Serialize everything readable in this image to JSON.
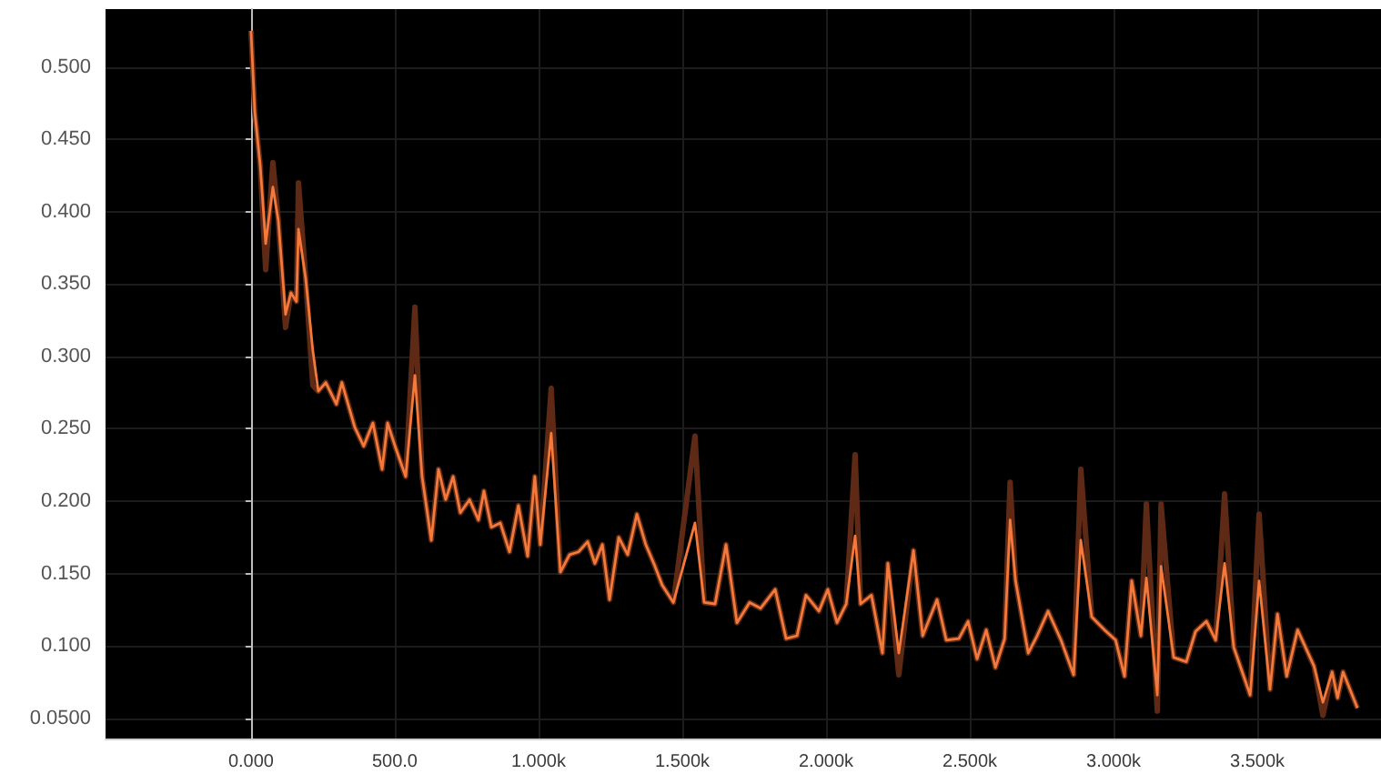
{
  "chart_data": {
    "type": "line",
    "marker": "none",
    "grid": true,
    "xlim": [
      -506,
      3930
    ],
    "ylim": [
      0.036,
      0.54
    ],
    "xticks": [
      {
        "value": 0,
        "label": "0.000"
      },
      {
        "value": 500,
        "label": "500.0"
      },
      {
        "value": 1000,
        "label": "1.000k"
      },
      {
        "value": 1500,
        "label": "1.500k"
      },
      {
        "value": 2000,
        "label": "2.000k"
      },
      {
        "value": 2500,
        "label": "2.500k"
      },
      {
        "value": 3000,
        "label": "3.000k"
      },
      {
        "value": 3500,
        "label": "3.500k"
      }
    ],
    "yticks": [
      {
        "value": 0.05,
        "label": "0.0500"
      },
      {
        "value": 0.1,
        "label": "0.100"
      },
      {
        "value": 0.15,
        "label": "0.150"
      },
      {
        "value": 0.2,
        "label": "0.200"
      },
      {
        "value": 0.25,
        "label": "0.250"
      },
      {
        "value": 0.3,
        "label": "0.300"
      },
      {
        "value": 0.35,
        "label": "0.350"
      },
      {
        "value": 0.4,
        "label": "0.400"
      },
      {
        "value": 0.45,
        "label": "0.450"
      },
      {
        "value": 0.5,
        "label": "0.500"
      }
    ],
    "series": [
      {
        "color": "#5e2a16",
        "x": [
          0,
          13,
          32,
          51,
          76,
          95,
          120,
          139,
          158,
          165,
          190,
          215,
          234,
          260,
          297,
          316,
          361,
          392,
          424,
          456,
          475,
          506,
          538,
          570,
          595,
          627,
          652,
          677,
          703,
          728,
          760,
          791,
          810,
          836,
          867,
          899,
          930,
          962,
          987,
          1006,
          1044,
          1076,
          1108,
          1139,
          1171,
          1196,
          1222,
          1247,
          1279,
          1310,
          1342,
          1373,
          1405,
          1430,
          1469,
          1544,
          1576,
          1614,
          1652,
          1690,
          1734,
          1772,
          1823,
          1861,
          1899,
          1930,
          1975,
          2006,
          2038,
          2070,
          2101,
          2120,
          2158,
          2196,
          2215,
          2253,
          2304,
          2336,
          2386,
          2418,
          2462,
          2494,
          2525,
          2557,
          2589,
          2621,
          2640,
          2659,
          2703,
          2734,
          2772,
          2817,
          2861,
          2886,
          2924,
          2969,
          3007,
          3038,
          3063,
          3095,
          3114,
          3152,
          3165,
          3209,
          3253,
          3285,
          3323,
          3355,
          3386,
          3418,
          3475,
          3506,
          3544,
          3570,
          3602,
          3640,
          3697,
          3728,
          3760,
          3779,
          3798,
          3848
        ],
        "values": [
          0.525,
          0.469,
          0.432,
          0.36,
          0.434,
          0.394,
          0.32,
          0.344,
          0.338,
          0.42,
          0.354,
          0.28,
          0.276,
          0.282,
          0.267,
          0.282,
          0.251,
          0.238,
          0.254,
          0.222,
          0.254,
          0.235,
          0.217,
          0.334,
          0.217,
          0.173,
          0.222,
          0.201,
          0.217,
          0.192,
          0.201,
          0.187,
          0.207,
          0.182,
          0.185,
          0.165,
          0.197,
          0.162,
          0.217,
          0.17,
          0.278,
          0.151,
          0.163,
          0.165,
          0.172,
          0.157,
          0.17,
          0.132,
          0.175,
          0.163,
          0.191,
          0.17,
          0.155,
          0.142,
          0.13,
          0.245,
          0.13,
          0.129,
          0.17,
          0.116,
          0.13,
          0.126,
          0.139,
          0.105,
          0.107,
          0.135,
          0.124,
          0.139,
          0.116,
          0.129,
          0.232,
          0.129,
          0.135,
          0.095,
          0.157,
          0.08,
          0.166,
          0.107,
          0.132,
          0.104,
          0.105,
          0.117,
          0.091,
          0.111,
          0.085,
          0.105,
          0.213,
          0.145,
          0.095,
          0.107,
          0.124,
          0.104,
          0.08,
          0.222,
          0.12,
          0.111,
          0.104,
          0.079,
          0.145,
          0.107,
          0.198,
          0.055,
          0.198,
          0.092,
          0.089,
          0.11,
          0.117,
          0.104,
          0.205,
          0.099,
          0.066,
          0.191,
          0.07,
          0.122,
          0.079,
          0.111,
          0.086,
          0.052,
          0.082,
          0.064,
          0.082,
          0.057
        ]
      },
      {
        "color": "#f4793b",
        "x": [
          0,
          13,
          32,
          51,
          76,
          95,
          120,
          139,
          158,
          165,
          190,
          215,
          234,
          260,
          297,
          316,
          361,
          392,
          424,
          456,
          475,
          506,
          538,
          570,
          595,
          627,
          652,
          677,
          703,
          728,
          760,
          791,
          810,
          836,
          867,
          899,
          930,
          962,
          987,
          1006,
          1044,
          1076,
          1108,
          1139,
          1171,
          1196,
          1222,
          1247,
          1279,
          1310,
          1342,
          1373,
          1405,
          1430,
          1469,
          1544,
          1576,
          1614,
          1652,
          1690,
          1734,
          1772,
          1823,
          1861,
          1899,
          1930,
          1975,
          2006,
          2038,
          2070,
          2101,
          2120,
          2158,
          2196,
          2215,
          2253,
          2304,
          2336,
          2386,
          2418,
          2462,
          2494,
          2525,
          2557,
          2589,
          2621,
          2640,
          2659,
          2703,
          2734,
          2772,
          2817,
          2861,
          2886,
          2924,
          2969,
          3007,
          3038,
          3063,
          3095,
          3114,
          3152,
          3165,
          3209,
          3253,
          3285,
          3323,
          3355,
          3386,
          3418,
          3475,
          3506,
          3544,
          3570,
          3602,
          3640,
          3697,
          3728,
          3760,
          3779,
          3798,
          3848
        ],
        "values": [
          0.525,
          0.469,
          0.432,
          0.378,
          0.417,
          0.394,
          0.329,
          0.344,
          0.338,
          0.388,
          0.354,
          0.304,
          0.276,
          0.282,
          0.267,
          0.282,
          0.251,
          0.238,
          0.254,
          0.222,
          0.254,
          0.235,
          0.217,
          0.287,
          0.217,
          0.173,
          0.222,
          0.201,
          0.217,
          0.192,
          0.201,
          0.187,
          0.207,
          0.182,
          0.185,
          0.165,
          0.197,
          0.162,
          0.217,
          0.17,
          0.247,
          0.151,
          0.163,
          0.165,
          0.172,
          0.157,
          0.17,
          0.132,
          0.175,
          0.163,
          0.191,
          0.17,
          0.155,
          0.142,
          0.13,
          0.185,
          0.13,
          0.129,
          0.17,
          0.116,
          0.13,
          0.126,
          0.139,
          0.105,
          0.107,
          0.135,
          0.124,
          0.139,
          0.116,
          0.129,
          0.176,
          0.129,
          0.135,
          0.095,
          0.157,
          0.095,
          0.166,
          0.107,
          0.132,
          0.104,
          0.105,
          0.117,
          0.091,
          0.111,
          0.085,
          0.105,
          0.187,
          0.145,
          0.095,
          0.107,
          0.124,
          0.104,
          0.08,
          0.173,
          0.12,
          0.111,
          0.104,
          0.079,
          0.145,
          0.107,
          0.147,
          0.066,
          0.155,
          0.092,
          0.089,
          0.11,
          0.117,
          0.104,
          0.157,
          0.099,
          0.066,
          0.145,
          0.07,
          0.122,
          0.079,
          0.111,
          0.086,
          0.061,
          0.082,
          0.064,
          0.082,
          0.057
        ]
      }
    ]
  }
}
